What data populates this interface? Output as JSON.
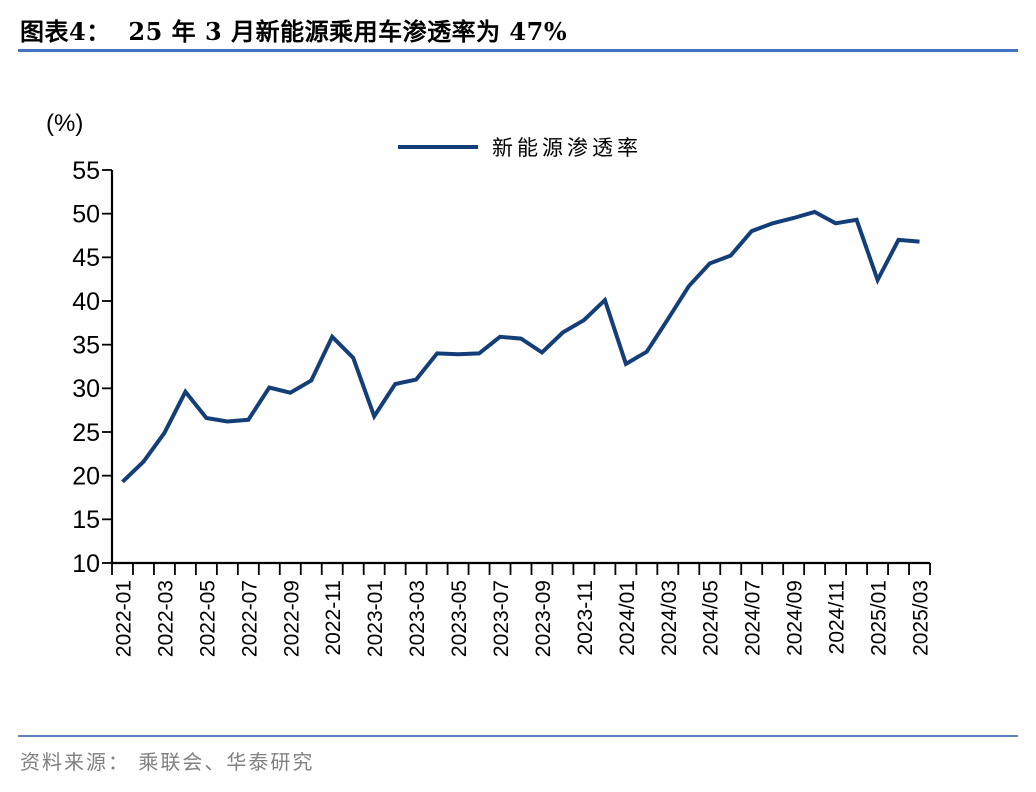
{
  "title": "图表4：  25 年 3 月新能源乘用车渗透率为 47%",
  "unit_label": "(%)",
  "legend": {
    "label": "新能源渗透率"
  },
  "source": "资料来源：  乘联会、华泰研究",
  "colors": {
    "line": "#143E78",
    "header_rule": "#4472C4",
    "footer_rule": "#5B83C0",
    "axis": "#000000",
    "tick_text": "#000000",
    "source_text": "#808080"
  },
  "chart_data": {
    "type": "line",
    "title": "25 年 3 月新能源乘用车渗透率为 47%",
    "x": [
      "2022-01",
      "2022-02",
      "2022-03",
      "2022-04",
      "2022-05",
      "2022-06",
      "2022-07",
      "2022-08",
      "2022-09",
      "2022-10",
      "2022-11",
      "2022-12",
      "2023-01",
      "2023-02",
      "2023-03",
      "2023-04",
      "2023-05",
      "2023-06",
      "2023-07",
      "2023-08",
      "2023-09",
      "2023-10",
      "2023-11",
      "2023-12",
      "2024/01",
      "2024/02",
      "2024/03",
      "2024/04",
      "2024/05",
      "2024/06",
      "2024/07",
      "2024/08",
      "2024/09",
      "2024/10",
      "2024/11",
      "2024/12",
      "2025/01",
      "2025/02",
      "2025/03"
    ],
    "series": [
      {
        "name": "新能源渗透率",
        "values": [
          19.3,
          21.6,
          24.9,
          29.6,
          26.6,
          26.2,
          26.4,
          30.1,
          29.5,
          30.9,
          35.9,
          33.5,
          26.8,
          30.5,
          31.0,
          34.0,
          33.9,
          34.0,
          35.9,
          35.7,
          34.1,
          36.4,
          37.8,
          40.1,
          32.8,
          34.2,
          37.9,
          41.7,
          44.3,
          45.2,
          48.0,
          48.9,
          49.5,
          50.2,
          48.9,
          49.3,
          42.4,
          47.0,
          46.8
        ]
      }
    ],
    "x_tick_label_every": 2,
    "ylabel": "(%)",
    "ylim": [
      10,
      55
    ],
    "y_tick_step": 5,
    "y_ticks": [
      10,
      15,
      20,
      25,
      30,
      35,
      40,
      45,
      50,
      55
    ],
    "grid": false,
    "legend_position": "top-center"
  }
}
